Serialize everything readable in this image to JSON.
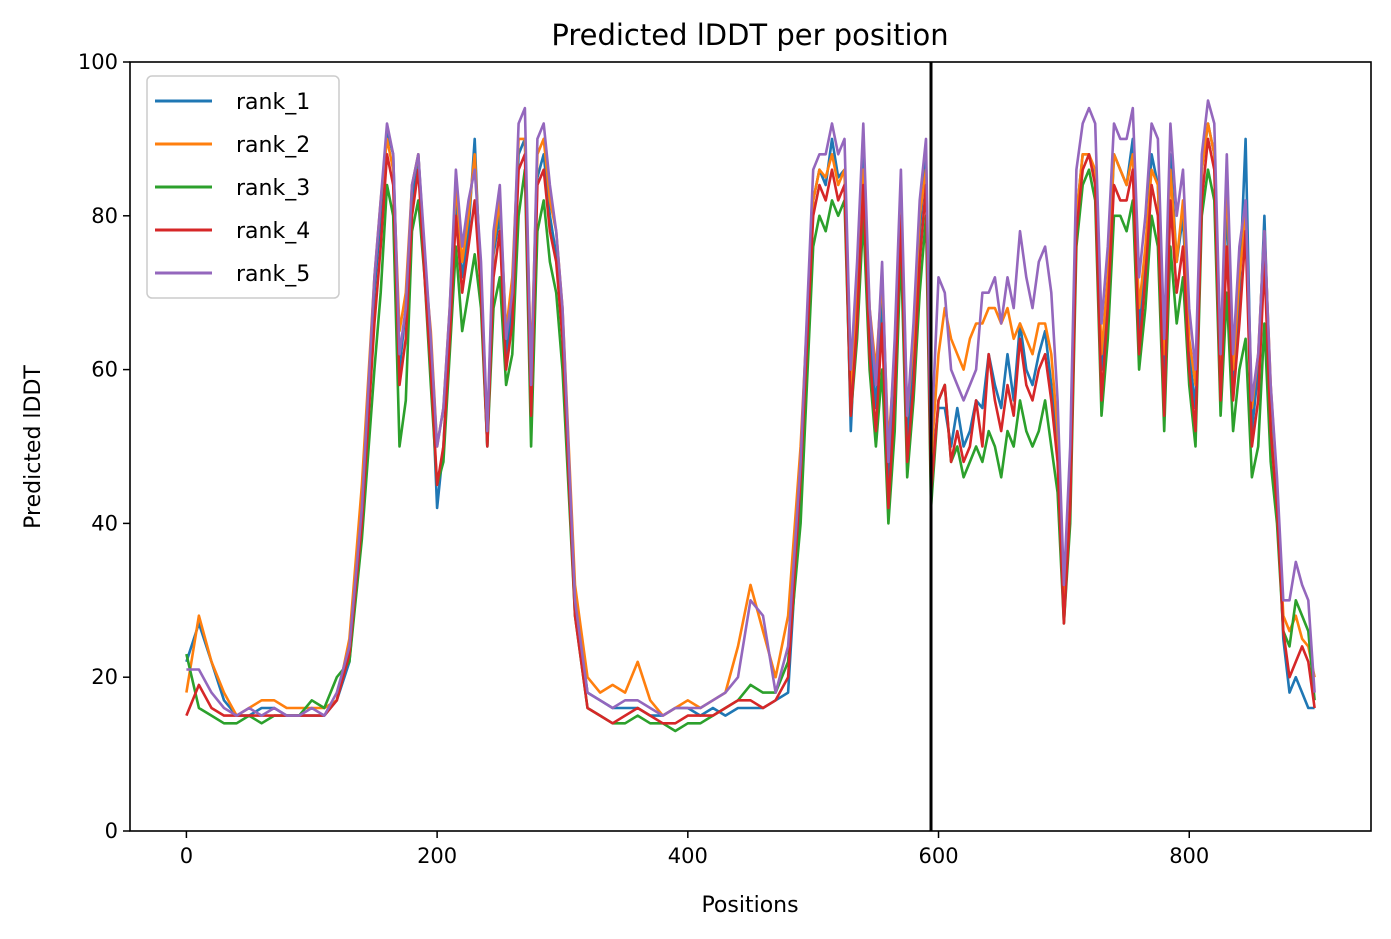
{
  "chart_data": {
    "type": "line",
    "title": "Predicted lDDT per position",
    "xlabel": "Positions",
    "ylabel": "Predicted lDDT",
    "xlim": [
      -45,
      945
    ],
    "ylim": [
      0,
      100
    ],
    "xticks": [
      0,
      200,
      400,
      600,
      800
    ],
    "yticks": [
      0,
      20,
      40,
      60,
      80,
      100
    ],
    "grid": false,
    "legend_position": "top-left",
    "vline_x": 594,
    "colors": {
      "vline": "#000000",
      "frame": "#000000"
    },
    "x": [
      0,
      10,
      20,
      30,
      40,
      50,
      60,
      70,
      80,
      90,
      100,
      110,
      120,
      130,
      140,
      150,
      155,
      160,
      165,
      170,
      175,
      180,
      185,
      190,
      195,
      200,
      205,
      210,
      215,
      220,
      225,
      230,
      235,
      240,
      245,
      250,
      255,
      260,
      265,
      270,
      275,
      280,
      285,
      290,
      295,
      300,
      310,
      320,
      330,
      340,
      350,
      360,
      370,
      380,
      390,
      400,
      410,
      420,
      430,
      440,
      450,
      460,
      470,
      480,
      490,
      500,
      505,
      510,
      515,
      520,
      525,
      530,
      535,
      540,
      545,
      550,
      555,
      560,
      565,
      570,
      575,
      580,
      585,
      590,
      594,
      600,
      605,
      610,
      615,
      620,
      625,
      630,
      635,
      640,
      645,
      650,
      655,
      660,
      665,
      670,
      675,
      680,
      685,
      690,
      695,
      700,
      705,
      710,
      715,
      720,
      725,
      730,
      735,
      740,
      745,
      750,
      755,
      760,
      765,
      770,
      775,
      780,
      785,
      790,
      795,
      800,
      805,
      810,
      815,
      820,
      825,
      830,
      835,
      840,
      845,
      850,
      855,
      860,
      865,
      870,
      875,
      880,
      885,
      890,
      895,
      900
    ],
    "series": [
      {
        "name": "rank_1",
        "color": "#1f77b4",
        "values": [
          22,
          27,
          22,
          17,
          15,
          15,
          16,
          16,
          15,
          15,
          15,
          15,
          17,
          22,
          40,
          70,
          80,
          91,
          88,
          60,
          68,
          82,
          88,
          75,
          62,
          42,
          50,
          66,
          82,
          72,
          78,
          90,
          70,
          50,
          75,
          80,
          62,
          68,
          88,
          90,
          55,
          85,
          88,
          80,
          75,
          65,
          30,
          18,
          17,
          16,
          16,
          16,
          15,
          15,
          16,
          16,
          15,
          16,
          15,
          16,
          16,
          16,
          17,
          18,
          45,
          82,
          86,
          84,
          90,
          85,
          86,
          52,
          70,
          88,
          65,
          55,
          70,
          45,
          58,
          82,
          50,
          62,
          78,
          88,
          47,
          55,
          55,
          50,
          55,
          50,
          52,
          56,
          55,
          62,
          58,
          55,
          62,
          56,
          66,
          60,
          58,
          62,
          65,
          58,
          50,
          28,
          45,
          80,
          88,
          88,
          85,
          60,
          70,
          88,
          86,
          84,
          90,
          65,
          75,
          88,
          84,
          58,
          88,
          74,
          80,
          62,
          55,
          86,
          92,
          88,
          58,
          82,
          58,
          70,
          90,
          52,
          60,
          80,
          55,
          44,
          25,
          18,
          20,
          18,
          16,
          16
        ]
      },
      {
        "name": "rank_2",
        "color": "#ff7f0e",
        "values": [
          18,
          28,
          22,
          18,
          15,
          16,
          17,
          17,
          16,
          16,
          16,
          16,
          17,
          25,
          45,
          72,
          82,
          90,
          86,
          65,
          70,
          84,
          88,
          74,
          65,
          50,
          55,
          68,
          84,
          74,
          80,
          88,
          72,
          52,
          76,
          82,
          65,
          72,
          90,
          90,
          60,
          88,
          90,
          82,
          78,
          68,
          32,
          20,
          18,
          19,
          18,
          22,
          17,
          15,
          16,
          17,
          16,
          17,
          18,
          24,
          32,
          26,
          20,
          28,
          50,
          82,
          86,
          85,
          88,
          84,
          86,
          56,
          72,
          86,
          68,
          60,
          72,
          50,
          62,
          82,
          54,
          64,
          80,
          86,
          48,
          62,
          68,
          64,
          62,
          60,
          64,
          66,
          66,
          68,
          68,
          66,
          68,
          64,
          66,
          64,
          62,
          66,
          66,
          62,
          52,
          30,
          48,
          80,
          88,
          88,
          86,
          62,
          72,
          88,
          86,
          84,
          88,
          68,
          76,
          86,
          84,
          62,
          86,
          74,
          82,
          64,
          58,
          86,
          92,
          88,
          60,
          85,
          60,
          72,
          80,
          55,
          62,
          78,
          58,
          45,
          28,
          26,
          28,
          25,
          24,
          20
        ]
      },
      {
        "name": "rank_3",
        "color": "#2ca02c",
        "values": [
          23,
          16,
          15,
          14,
          14,
          15,
          14,
          15,
          15,
          15,
          17,
          16,
          20,
          22,
          38,
          60,
          70,
          84,
          80,
          50,
          56,
          78,
          82,
          72,
          58,
          45,
          48,
          62,
          76,
          65,
          70,
          75,
          68,
          50,
          68,
          72,
          58,
          62,
          80,
          86,
          50,
          78,
          82,
          74,
          70,
          60,
          28,
          16,
          15,
          14,
          14,
          15,
          14,
          14,
          13,
          14,
          14,
          15,
          16,
          17,
          19,
          18,
          18,
          22,
          40,
          76,
          80,
          78,
          82,
          80,
          82,
          54,
          64,
          80,
          60,
          50,
          60,
          40,
          52,
          76,
          46,
          56,
          70,
          80,
          42,
          56,
          58,
          48,
          50,
          46,
          48,
          50,
          48,
          52,
          50,
          46,
          52,
          50,
          56,
          52,
          50,
          52,
          56,
          50,
          44,
          27,
          40,
          76,
          84,
          86,
          82,
          54,
          64,
          80,
          80,
          78,
          82,
          60,
          68,
          80,
          76,
          52,
          76,
          66,
          72,
          58,
          50,
          80,
          86,
          82,
          54,
          70,
          52,
          60,
          64,
          46,
          50,
          66,
          48,
          40,
          26,
          24,
          30,
          28,
          26,
          17
        ]
      },
      {
        "name": "rank_4",
        "color": "#d62728",
        "values": [
          15,
          19,
          16,
          15,
          15,
          15,
          15,
          15,
          15,
          15,
          15,
          15,
          17,
          23,
          40,
          66,
          76,
          88,
          84,
          58,
          64,
          80,
          86,
          72,
          60,
          45,
          50,
          64,
          80,
          70,
          76,
          82,
          70,
          50,
          72,
          78,
          60,
          66,
          86,
          88,
          54,
          84,
          86,
          78,
          74,
          64,
          28,
          16,
          15,
          14,
          15,
          16,
          15,
          14,
          14,
          15,
          15,
          15,
          16,
          17,
          17,
          16,
          17,
          20,
          46,
          80,
          84,
          82,
          86,
          82,
          84,
          54,
          66,
          84,
          62,
          52,
          66,
          42,
          56,
          80,
          48,
          58,
          74,
          84,
          44,
          56,
          58,
          48,
          52,
          48,
          50,
          56,
          50,
          62,
          56,
          52,
          58,
          54,
          64,
          58,
          56,
          60,
          62,
          56,
          48,
          27,
          42,
          78,
          86,
          88,
          84,
          56,
          68,
          84,
          82,
          82,
          86,
          62,
          72,
          84,
          80,
          54,
          82,
          70,
          76,
          60,
          52,
          82,
          90,
          86,
          56,
          76,
          56,
          66,
          78,
          50,
          56,
          74,
          52,
          42,
          26,
          20,
          22,
          24,
          22,
          16
        ]
      },
      {
        "name": "rank_5",
        "color": "#9467bd",
        "values": [
          21,
          21,
          18,
          16,
          15,
          16,
          15,
          16,
          15,
          15,
          16,
          15,
          18,
          24,
          42,
          72,
          82,
          92,
          88,
          62,
          68,
          84,
          88,
          76,
          64,
          50,
          55,
          68,
          86,
          76,
          82,
          86,
          74,
          52,
          78,
          84,
          64,
          70,
          92,
          94,
          58,
          90,
          92,
          84,
          78,
          68,
          30,
          18,
          17,
          16,
          17,
          17,
          16,
          15,
          16,
          16,
          16,
          17,
          18,
          20,
          30,
          28,
          18,
          24,
          48,
          86,
          88,
          88,
          92,
          88,
          90,
          60,
          74,
          92,
          68,
          58,
          74,
          48,
          64,
          86,
          54,
          66,
          82,
          90,
          50,
          72,
          70,
          60,
          58,
          56,
          58,
          60,
          70,
          70,
          72,
          66,
          72,
          68,
          78,
          72,
          68,
          74,
          76,
          70,
          56,
          32,
          50,
          86,
          92,
          94,
          92,
          66,
          76,
          92,
          90,
          90,
          94,
          72,
          80,
          92,
          90,
          64,
          92,
          80,
          86,
          68,
          60,
          88,
          95,
          92,
          62,
          88,
          62,
          76,
          82,
          56,
          62,
          78,
          58,
          46,
          30,
          30,
          35,
          32,
          30,
          18
        ]
      }
    ]
  }
}
